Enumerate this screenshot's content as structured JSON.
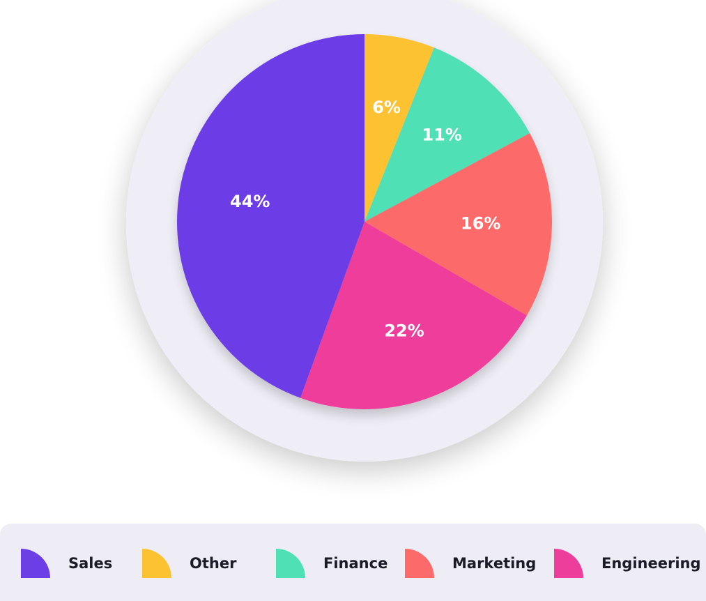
{
  "chart_data": {
    "type": "pie",
    "slices": [
      {
        "name": "Other",
        "value": 6,
        "label": "6%",
        "color": "#fdc231"
      },
      {
        "name": "Finance",
        "value": 11,
        "label": "11%",
        "color": "#4fe0b5"
      },
      {
        "name": "Marketing",
        "value": 16,
        "label": "16%",
        "color": "#fd6a6a"
      },
      {
        "name": "Engineering",
        "value": 22,
        "label": "22%",
        "color": "#ee3e9b"
      },
      {
        "name": "Sales",
        "value": 44,
        "label": "44%",
        "color": "#6c3ee6"
      }
    ],
    "start_angle_deg": 0,
    "direction": "clockwise",
    "legend_position": "bottom",
    "legend_order": [
      "Sales",
      "Other",
      "Finance",
      "Marketing",
      "Engineering"
    ],
    "title": ""
  },
  "colors": {
    "ring_background": "#efeef6",
    "legend_background": "#eeedf5",
    "label_text": "#ffffff"
  }
}
